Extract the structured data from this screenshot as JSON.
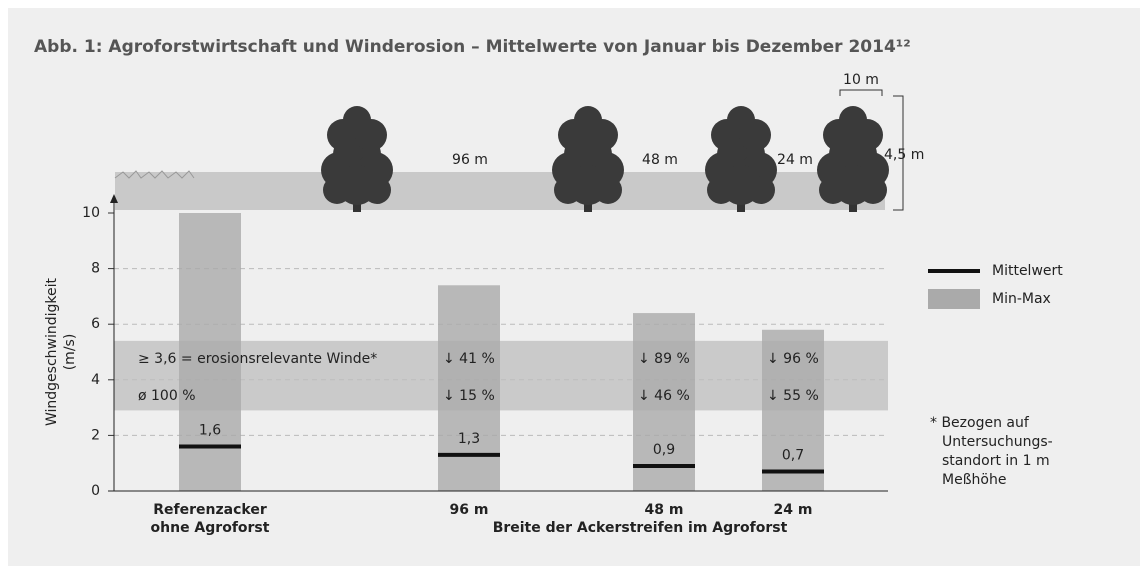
{
  "chart_data": {
    "type": "bar",
    "title": "Abb. 1: Agroforstwirtschaft und Winderosion – Mittelwerte von Januar bis Dezember 2014¹²",
    "ylabel": [
      "Windgeschwindigkeit",
      "(m/s)"
    ],
    "xlabel": "Breite der Ackerstreifen im Agroforst",
    "categories": [
      [
        "Referenzacker",
        "ohne Agroforst"
      ],
      [
        "96 m"
      ],
      [
        "48 m"
      ],
      [
        "24 m"
      ]
    ],
    "series": [
      {
        "name": "Min-Max",
        "color": "#aaaaaa",
        "values": [
          10,
          7.4,
          6.4,
          5.8
        ]
      },
      {
        "name": "Mittelwert",
        "color": "#111111",
        "values": [
          1.6,
          1.3,
          0.9,
          0.7
        ],
        "value_labels": [
          "1,6",
          "1,3",
          "0,9",
          "0,7"
        ]
      }
    ],
    "ylim": [
      0,
      10
    ],
    "yticks": [
      0,
      2,
      4,
      6,
      8,
      10
    ],
    "grid": true,
    "band": {
      "range": [
        2.9,
        5.4
      ],
      "label": "≥ 3,6 = erosionsrelevante Winde*",
      "reference": "ø 100 %"
    },
    "reductions": [
      null,
      [
        "↓ 41 %",
        "↓ 15 %"
      ],
      [
        "↓ 89 %",
        "↓ 46 %"
      ],
      [
        "↓ 96 %",
        "↓ 55 %"
      ]
    ],
    "illustration": {
      "strips": [
        "96 m",
        "48 m",
        "24 m"
      ],
      "tree_width": "10 m",
      "tree_height": "4,5 m"
    },
    "footnote": [
      "* Bezogen auf",
      "Untersuchungs-",
      "standort in 1 m",
      "Meßhöhe"
    ]
  }
}
